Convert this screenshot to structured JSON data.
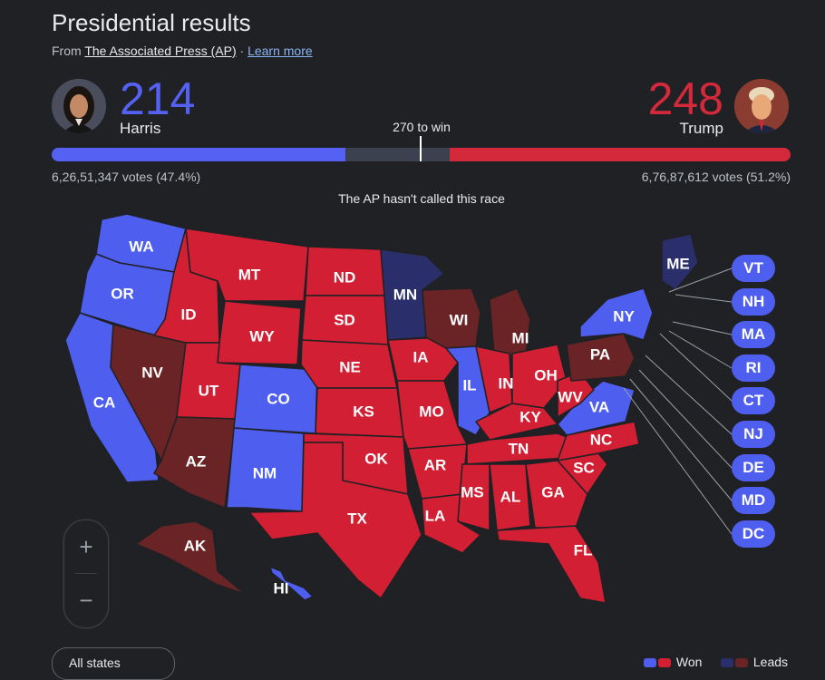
{
  "header": {
    "title": "Presidential results",
    "source_prefix": "From",
    "source_name": "The Associated Press (AP)",
    "separator": "·",
    "learn_more": "Learn more"
  },
  "candidates": {
    "harris": {
      "name": "Harris",
      "electoral_votes": "214",
      "popular_votes": "6,26,51,347 votes (47.4%)",
      "color": "#5561f2"
    },
    "trump": {
      "name": "Trump",
      "electoral_votes": "248",
      "popular_votes": "6,76,87,612 votes (51.2%)",
      "color": "#d4283b"
    }
  },
  "progress": {
    "to_win_label": "270 to win",
    "total": 538,
    "win_threshold": 270,
    "harris": 214,
    "trump": 248
  },
  "status": "The AP hasn't called this race",
  "colors": {
    "dem_won": "#4e5ff0",
    "rep_won": "#d21f33",
    "dem_lead": "#2a2f6b",
    "rep_lead": "#6a2426",
    "background": "#202124"
  },
  "states": [
    {
      "abbr": "WA",
      "status": "dem_won"
    },
    {
      "abbr": "OR",
      "status": "dem_won"
    },
    {
      "abbr": "CA",
      "status": "dem_won"
    },
    {
      "abbr": "NV",
      "status": "rep_lead"
    },
    {
      "abbr": "ID",
      "status": "rep_won"
    },
    {
      "abbr": "MT",
      "status": "rep_won"
    },
    {
      "abbr": "WY",
      "status": "rep_won"
    },
    {
      "abbr": "UT",
      "status": "rep_won"
    },
    {
      "abbr": "AZ",
      "status": "rep_lead"
    },
    {
      "abbr": "CO",
      "status": "dem_won"
    },
    {
      "abbr": "NM",
      "status": "dem_won"
    },
    {
      "abbr": "ND",
      "status": "rep_won"
    },
    {
      "abbr": "SD",
      "status": "rep_won"
    },
    {
      "abbr": "NE",
      "status": "rep_won"
    },
    {
      "abbr": "KS",
      "status": "rep_won"
    },
    {
      "abbr": "OK",
      "status": "rep_won"
    },
    {
      "abbr": "TX",
      "status": "rep_won"
    },
    {
      "abbr": "MN",
      "status": "dem_lead"
    },
    {
      "abbr": "IA",
      "status": "rep_won"
    },
    {
      "abbr": "MO",
      "status": "rep_won"
    },
    {
      "abbr": "AR",
      "status": "rep_won"
    },
    {
      "abbr": "LA",
      "status": "rep_won"
    },
    {
      "abbr": "WI",
      "status": "rep_lead"
    },
    {
      "abbr": "IL",
      "status": "dem_won"
    },
    {
      "abbr": "MI",
      "status": "rep_lead"
    },
    {
      "abbr": "IN",
      "status": "rep_won"
    },
    {
      "abbr": "OH",
      "status": "rep_won"
    },
    {
      "abbr": "KY",
      "status": "rep_won"
    },
    {
      "abbr": "TN",
      "status": "rep_won"
    },
    {
      "abbr": "MS",
      "status": "rep_won"
    },
    {
      "abbr": "AL",
      "status": "rep_won"
    },
    {
      "abbr": "GA",
      "status": "rep_won"
    },
    {
      "abbr": "FL",
      "status": "rep_won"
    },
    {
      "abbr": "SC",
      "status": "rep_won"
    },
    {
      "abbr": "NC",
      "status": "rep_won"
    },
    {
      "abbr": "VA",
      "status": "dem_won"
    },
    {
      "abbr": "WV",
      "status": "rep_won"
    },
    {
      "abbr": "PA",
      "status": "rep_lead"
    },
    {
      "abbr": "NY",
      "status": "dem_won"
    },
    {
      "abbr": "ME",
      "status": "dem_lead"
    },
    {
      "abbr": "AK",
      "status": "rep_lead"
    },
    {
      "abbr": "HI",
      "status": "dem_won"
    }
  ],
  "small_states": [
    {
      "abbr": "VT",
      "status": "dem_won"
    },
    {
      "abbr": "NH",
      "status": "dem_won"
    },
    {
      "abbr": "MA",
      "status": "dem_won"
    },
    {
      "abbr": "RI",
      "status": "dem_won"
    },
    {
      "abbr": "CT",
      "status": "dem_won"
    },
    {
      "abbr": "NJ",
      "status": "dem_won"
    },
    {
      "abbr": "DE",
      "status": "dem_won"
    },
    {
      "abbr": "MD",
      "status": "dem_won"
    },
    {
      "abbr": "DC",
      "status": "dem_won"
    }
  ],
  "map_controls": {
    "zoom_in": "+",
    "zoom_out": "−"
  },
  "bottom_button": "All states",
  "legend": {
    "won": "Won",
    "leads": "Leads"
  }
}
